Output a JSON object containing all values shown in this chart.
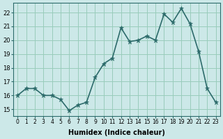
{
  "x": [
    0,
    1,
    2,
    3,
    4,
    5,
    6,
    7,
    8,
    9,
    10,
    11,
    12,
    13,
    14,
    15,
    16,
    17,
    18,
    19,
    20,
    21,
    22,
    23
  ],
  "y": [
    16.0,
    16.5,
    16.5,
    16.0,
    16.0,
    15.7,
    14.9,
    15.3,
    15.5,
    17.3,
    18.3,
    18.7,
    20.9,
    19.9,
    20.0,
    20.3,
    20.0,
    21.9,
    21.3,
    22.3,
    21.2,
    19.2,
    16.5,
    15.5
  ],
  "xlabel": "Humidex (Indice chaleur)",
  "ylabel": "",
  "xlim": [
    -0.5,
    23.5
  ],
  "ylim": [
    14.5,
    22.7
  ],
  "yticks": [
    15,
    16,
    17,
    18,
    19,
    20,
    21,
    22
  ],
  "xticks": [
    0,
    1,
    2,
    3,
    4,
    5,
    6,
    7,
    8,
    9,
    10,
    11,
    12,
    13,
    14,
    15,
    16,
    17,
    18,
    19,
    20,
    21,
    22,
    23
  ],
  "line_color": "#2d6b6b",
  "marker": "*",
  "marker_size": 5,
  "bg_color": "#cce8e8",
  "grid_color": "#99ccbb",
  "axes_color": "#2d6b6b"
}
